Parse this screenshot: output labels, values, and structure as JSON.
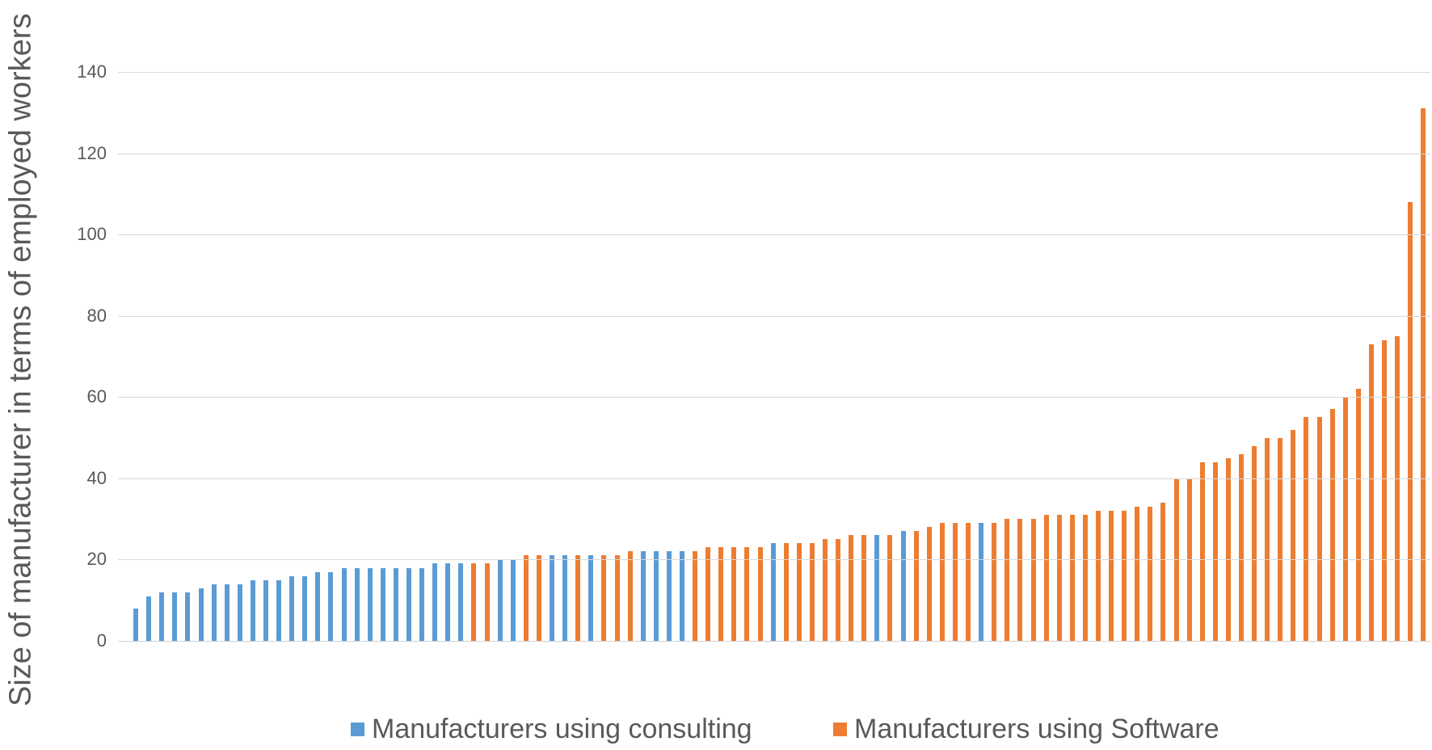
{
  "figure": {
    "background": "#FFFFFF",
    "grid_color": "#D9D9D9",
    "tick_label_color": "#595959"
  },
  "y_axis": {
    "title": "Size of manufacturer in terms of employed workers",
    "ticks": [
      0,
      20,
      40,
      60,
      80,
      100,
      120,
      140
    ]
  },
  "legend": {
    "items": [
      {
        "label": "Manufacturers using consulting",
        "color": "#5B9BD5"
      },
      {
        "label": "Manufacturers using Software",
        "color": "#ED7D31"
      }
    ]
  },
  "chart_data": {
    "type": "bar",
    "title": "",
    "xlabel": "",
    "ylabel": "Size of manufacturer in terms of employed workers",
    "ylim": [
      0,
      140
    ],
    "yticks": [
      0,
      20,
      40,
      60,
      80,
      100,
      120,
      140
    ],
    "grid": true,
    "legend_position": "bottom",
    "x_axis": "100 individual manufacturers, unlabeled, sorted by size ascending",
    "series": [
      {
        "name": "Manufacturers using consulting",
        "color": "#5B9BD5"
      },
      {
        "name": "Manufacturers using Software",
        "color": "#ED7D31"
      }
    ],
    "values": [
      8,
      11,
      12,
      12,
      12,
      13,
      14,
      14,
      14,
      15,
      15,
      15,
      16,
      16,
      17,
      17,
      18,
      18,
      18,
      18,
      18,
      18,
      18,
      19,
      19,
      19,
      19,
      19,
      20,
      20,
      21,
      21,
      21,
      21,
      21,
      21,
      21,
      21,
      22,
      22,
      22,
      22,
      22,
      22,
      23,
      23,
      23,
      23,
      23,
      24,
      24,
      24,
      24,
      25,
      25,
      26,
      26,
      26,
      26,
      27,
      27,
      28,
      29,
      29,
      29,
      29,
      29,
      30,
      30,
      30,
      31,
      31,
      31,
      31,
      32,
      32,
      32,
      33,
      33,
      34,
      40,
      40,
      44,
      44,
      45,
      46,
      48,
      50,
      50,
      52,
      55,
      55,
      57,
      60,
      62,
      73,
      74,
      75,
      108,
      131
    ],
    "series_index": [
      0,
      0,
      0,
      0,
      0,
      0,
      0,
      0,
      0,
      0,
      0,
      0,
      0,
      0,
      0,
      0,
      0,
      0,
      0,
      0,
      0,
      0,
      0,
      0,
      0,
      0,
      1,
      1,
      0,
      0,
      1,
      1,
      0,
      0,
      1,
      0,
      1,
      1,
      1,
      0,
      0,
      0,
      0,
      1,
      1,
      1,
      1,
      1,
      1,
      0,
      1,
      1,
      1,
      1,
      1,
      1,
      1,
      0,
      1,
      0,
      1,
      1,
      1,
      1,
      1,
      0,
      1,
      1,
      1,
      1,
      1,
      1,
      1,
      1,
      1,
      1,
      1,
      1,
      1,
      1,
      1,
      1,
      1,
      1,
      1,
      1,
      1,
      1,
      1,
      1,
      1,
      1,
      1,
      1,
      1,
      1,
      1,
      1,
      1,
      1
    ]
  }
}
